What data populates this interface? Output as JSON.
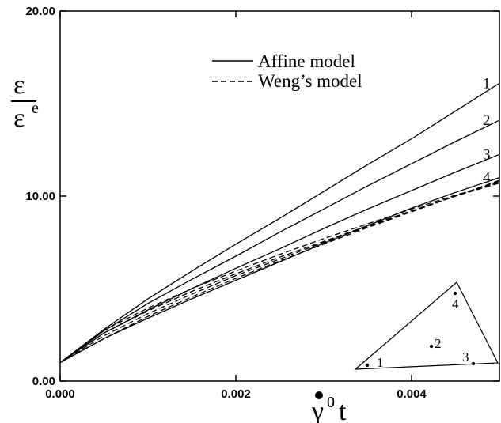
{
  "chart_data": {
    "type": "line",
    "xlabel": {
      "main": "γ",
      "superscript": "0",
      "suffix": "t",
      "dot": true
    },
    "ylabel": {
      "numerator": "ε",
      "denominator": "ε",
      "denominator_superscript": "e"
    },
    "xlim": [
      0,
      0.005
    ],
    "ylim": [
      0,
      20
    ],
    "x_ticks": [
      {
        "value": 0,
        "label": "0.000"
      },
      {
        "value": 0.002,
        "label": "0.002"
      },
      {
        "value": 0.004,
        "label": "0.004"
      }
    ],
    "y_ticks": [
      {
        "value": 0,
        "label": "0.00"
      },
      {
        "value": 10,
        "label": "10.00"
      },
      {
        "value": 20,
        "label": "20.00"
      }
    ],
    "grid": false,
    "legend": {
      "placement": "top-center",
      "entries": [
        {
          "label": "Affine model",
          "style": "solid"
        },
        {
          "label": "Weng’s model",
          "style": "dashed"
        }
      ]
    },
    "x": [
      0,
      0.0005,
      0.001,
      0.0015,
      0.002,
      0.0025,
      0.003,
      0.0035,
      0.004,
      0.0045,
      0.005
    ],
    "series": [
      {
        "curve_label": "1",
        "style": "solid",
        "values": [
          1.0,
          2.8,
          4.45,
          5.95,
          7.4,
          8.8,
          10.25,
          11.7,
          13.1,
          14.6,
          16.1
        ]
      },
      {
        "curve_label": "2",
        "style": "solid",
        "values": [
          1.0,
          2.72,
          4.2,
          5.5,
          6.75,
          8.05,
          9.3,
          10.55,
          11.75,
          12.95,
          14.1
        ]
      },
      {
        "curve_label": "3",
        "style": "solid",
        "values": [
          1.0,
          2.6,
          3.85,
          5.0,
          6.1,
          7.15,
          8.25,
          9.3,
          10.3,
          11.3,
          12.25
        ]
      },
      {
        "curve_label": "4",
        "style": "solid",
        "values": [
          1.0,
          2.3,
          3.4,
          4.45,
          5.45,
          6.45,
          7.45,
          8.4,
          9.35,
          10.2,
          11.0
        ]
      },
      {
        "style": "dashed",
        "values": [
          1.0,
          2.75,
          3.95,
          5.0,
          5.95,
          6.85,
          7.7,
          8.5,
          9.3,
          10.05,
          10.75
        ]
      },
      {
        "style": "dashed",
        "values": [
          1.0,
          2.6,
          3.8,
          4.85,
          5.8,
          6.7,
          7.55,
          8.4,
          9.2,
          10.0,
          10.7
        ]
      },
      {
        "style": "dashed",
        "values": [
          1.0,
          2.45,
          3.65,
          4.7,
          5.7,
          6.6,
          7.5,
          8.35,
          9.2,
          10.0,
          10.8
        ]
      },
      {
        "style": "dashed",
        "values": [
          1.0,
          2.3,
          3.5,
          4.55,
          5.55,
          6.5,
          7.4,
          8.3,
          9.15,
          10.0,
          10.85
        ]
      }
    ],
    "inset": {
      "type": "stereographic-triangle",
      "points": [
        {
          "label": "1"
        },
        {
          "label": "2"
        },
        {
          "label": "3"
        },
        {
          "label": "4"
        }
      ]
    }
  }
}
